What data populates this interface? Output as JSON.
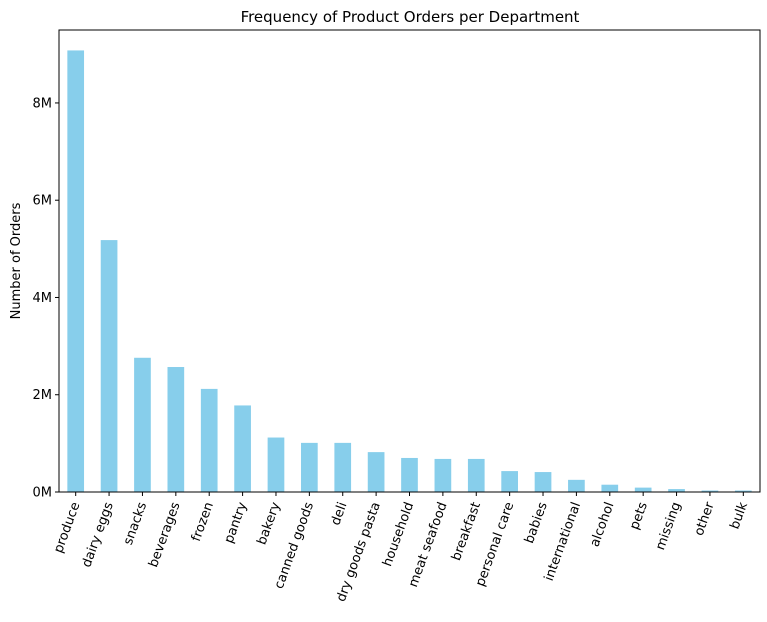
{
  "chart_data": {
    "type": "bar",
    "title": "Frequency of Product Orders per Department",
    "xlabel": "",
    "ylabel": "Number of Orders",
    "ylim": [
      0,
      9500000
    ],
    "yticks": [
      0,
      2000000,
      4000000,
      6000000,
      8000000
    ],
    "ytick_labels": [
      "0M",
      "2M",
      "4M",
      "6M",
      "8M"
    ],
    "grid": false,
    "bar_color": "#87CEEB",
    "categories": [
      "produce",
      "dairy eggs",
      "snacks",
      "beverages",
      "frozen",
      "pantry",
      "bakery",
      "canned goods",
      "deli",
      "dry goods pasta",
      "household",
      "meat seafood",
      "breakfast",
      "personal care",
      "babies",
      "international",
      "alcohol",
      "pets",
      "missing",
      "other",
      "bulk"
    ],
    "values": [
      9080000,
      5180000,
      2760000,
      2570000,
      2120000,
      1780000,
      1120000,
      1010000,
      1010000,
      820000,
      700000,
      680000,
      680000,
      430000,
      410000,
      250000,
      150000,
      90000,
      60000,
      30000,
      30000
    ]
  }
}
